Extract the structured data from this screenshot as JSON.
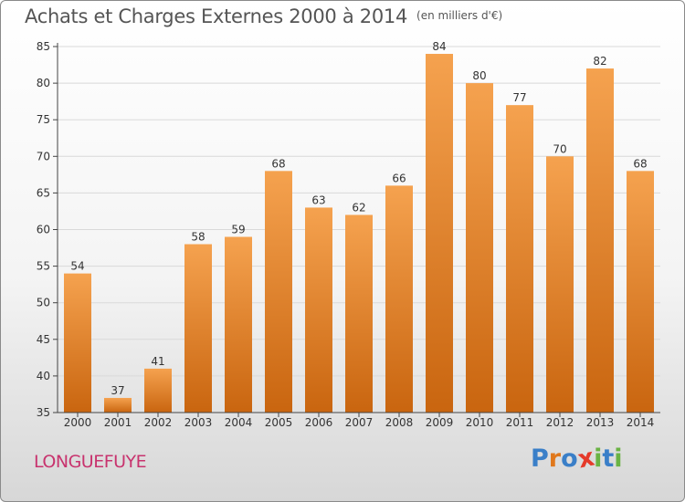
{
  "title": "Achats et Charges Externes 2000 à 2014",
  "unit": "(en milliers d'€)",
  "commune": "LONGUEFUYE",
  "logo": {
    "text": "Proxiti",
    "colors": [
      "#3a7fc8",
      "#e0781c",
      "#3a7fc8",
      "#e53a2a",
      "#6ab344",
      "#3a7fc8",
      "#6ab344"
    ]
  },
  "colors": {
    "bar_top": "#f5a24f",
    "bar_bottom": "#c9650f",
    "grid": "#d9d9d9",
    "axis": "#444444",
    "text": "#333333"
  },
  "chart_data": {
    "type": "bar",
    "categories": [
      "2000",
      "2001",
      "2002",
      "2003",
      "2004",
      "2005",
      "2006",
      "2007",
      "2008",
      "2009",
      "2010",
      "2011",
      "2012",
      "2013",
      "2014"
    ],
    "values": [
      54,
      37,
      41,
      58,
      59,
      68,
      63,
      62,
      66,
      84,
      80,
      77,
      70,
      82,
      68
    ],
    "ylim": [
      35,
      85
    ],
    "yticks": [
      35,
      40,
      45,
      50,
      55,
      60,
      65,
      70,
      75,
      80,
      85
    ],
    "grid": true,
    "data_labels": true
  }
}
